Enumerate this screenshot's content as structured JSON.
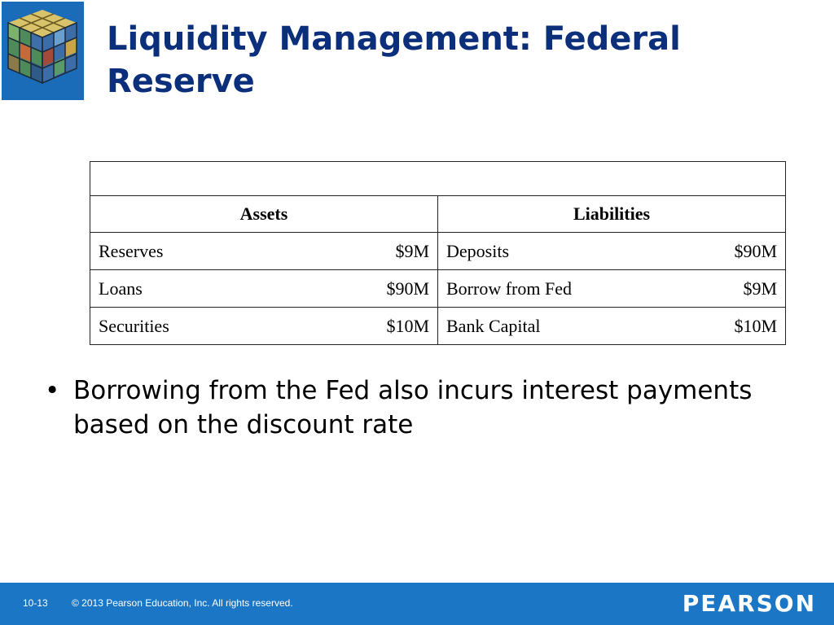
{
  "slide": {
    "title": "Liquidity Management: Federal Reserve",
    "bullet": "Borrowing from the Fed also incurs interest payments based on the discount rate"
  },
  "table": {
    "header_blank": "",
    "assets_header": "Assets",
    "liabilities_header": "Liabilities",
    "rows": [
      {
        "asset": "Reserves",
        "asset_value": "$9M",
        "liability": "Deposits",
        "liability_value": "$90M"
      },
      {
        "asset": "Loans",
        "asset_value": "$90M",
        "liability": "Borrow from Fed",
        "liability_value": "$9M"
      },
      {
        "asset": "Securities",
        "asset_value": "$10M",
        "liability": "Bank Capital",
        "liability_value": "$10M"
      }
    ]
  },
  "footer": {
    "page_number": "10-13",
    "copyright": "© 2013 Pearson Education, Inc. All rights reserved.",
    "brand": "PEARSON"
  },
  "colors": {
    "title": "#0b2f7a",
    "footer_bg": "#1b76c5"
  },
  "icons": {
    "logo": "rubiks-cube-icon"
  }
}
